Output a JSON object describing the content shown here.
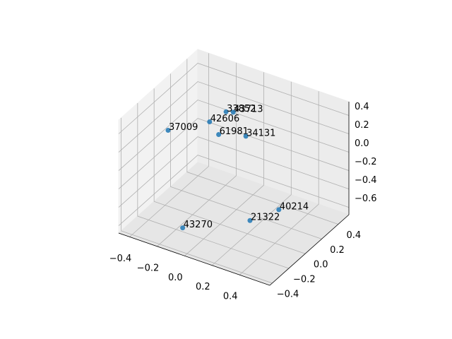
{
  "chart_data": {
    "type": "scatter3d",
    "series": [
      {
        "color": "#1f77b4",
        "x": [
          -0.1,
          -0.06,
          -0.16,
          -0.36,
          -0.07,
          0.05,
          0.32,
          0.2,
          -0.11
        ],
        "y": [
          0.24,
          0.26,
          0.14,
          -0.03,
          0.1,
          0.23,
          0.18,
          0.03,
          -0.27
        ],
        "z": [
          0.3,
          0.3,
          0.24,
          0.18,
          0.18,
          0.12,
          -0.5,
          -0.56,
          -0.56
        ],
        "labels": [
          "33852",
          "43713",
          "42606",
          "37009",
          "61981",
          "34131",
          "40214",
          "21322",
          "43270"
        ]
      }
    ],
    "xlim": [
      -0.48,
      0.62
    ],
    "ylim": [
      -0.43,
      0.53
    ],
    "zlim": [
      -0.68,
      0.55
    ],
    "xticks": [
      {
        "value": -0.4,
        "label": "−0.4"
      },
      {
        "value": -0.2,
        "label": "−0.2"
      },
      {
        "value": 0.0,
        "label": "0.0"
      },
      {
        "value": 0.2,
        "label": "0.2"
      },
      {
        "value": 0.4,
        "label": "0.4"
      }
    ],
    "yticks": [
      {
        "value": -0.4,
        "label": "−0.4"
      },
      {
        "value": -0.2,
        "label": "−0.2"
      },
      {
        "value": 0.0,
        "label": "0.0"
      },
      {
        "value": 0.2,
        "label": "0.2"
      },
      {
        "value": 0.4,
        "label": "0.4"
      }
    ],
    "zticks": [
      {
        "value": -0.6,
        "label": "−0.6"
      },
      {
        "value": -0.4,
        "label": "−0.4"
      },
      {
        "value": -0.2,
        "label": "−0.2"
      },
      {
        "value": 0.0,
        "label": "0.0"
      },
      {
        "value": 0.2,
        "label": "0.2"
      },
      {
        "value": 0.4,
        "label": "0.4"
      }
    ],
    "grid": true
  }
}
